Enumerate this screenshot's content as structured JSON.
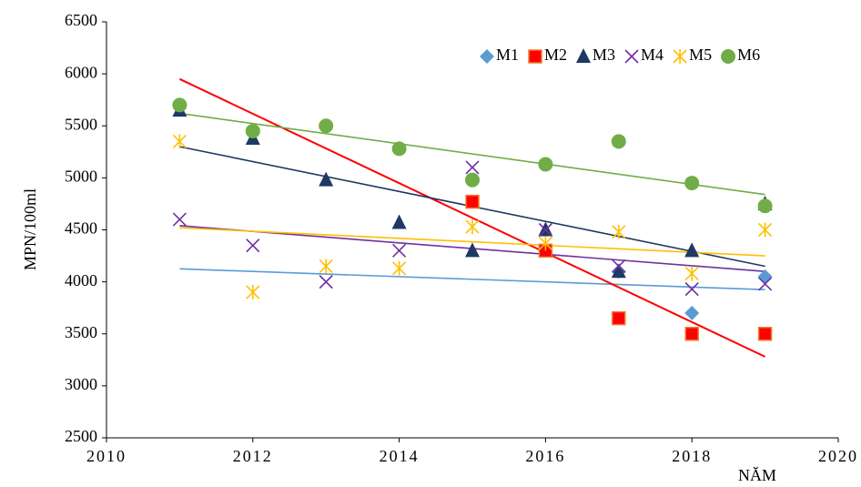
{
  "chart_data": {
    "type": "scatter",
    "x_label": "NĂM",
    "y_label": "MPN/100ml",
    "x": [
      2011,
      2012,
      2013,
      2014,
      2015,
      2016,
      2017,
      2018,
      2019
    ],
    "xlim": [
      2010,
      2020
    ],
    "xticks": [
      2010,
      2012,
      2014,
      2016,
      2018,
      2020
    ],
    "ylim": [
      2500,
      6500
    ],
    "yticks": [
      2500,
      3000,
      3500,
      4000,
      4500,
      5000,
      5500,
      6000,
      6500
    ],
    "grid": false,
    "legend": "top-right",
    "series": [
      {
        "name": "M1",
        "marker": "diamond",
        "color": "#5b9bd5",
        "values": [
          null,
          null,
          null,
          null,
          null,
          null,
          4100,
          3700,
          4050
        ],
        "trendline": [
          4125,
          3925
        ]
      },
      {
        "name": "M2",
        "marker": "square",
        "color": "#ff0000",
        "values": [
          null,
          null,
          null,
          null,
          4770,
          4300,
          3650,
          3500,
          3500
        ],
        "trendline": [
          5950,
          3280
        ]
      },
      {
        "name": "M3",
        "marker": "triangle",
        "color": "#1f3864",
        "values": [
          5650,
          5380,
          4980,
          4570,
          4300,
          4500,
          4100,
          4300,
          4750
        ],
        "trendline": [
          5300,
          4150
        ]
      },
      {
        "name": "M4",
        "marker": "x",
        "color": "#7030a0",
        "values": [
          4600,
          4350,
          4000,
          4300,
          5100,
          4500,
          4150,
          3930,
          3980
        ],
        "trendline": [
          4540,
          4100
        ]
      },
      {
        "name": "M5",
        "marker": "star",
        "color": "#ffc000",
        "values": [
          5350,
          3900,
          4150,
          4130,
          4530,
          4370,
          4480,
          4080,
          4500
        ],
        "trendline": [
          4520,
          4250
        ]
      },
      {
        "name": "M6",
        "marker": "circle",
        "color": "#70ad47",
        "values": [
          5700,
          5450,
          5500,
          5280,
          4980,
          5130,
          5350,
          4950,
          4730
        ],
        "trendline": [
          5620,
          4840
        ]
      }
    ]
  }
}
